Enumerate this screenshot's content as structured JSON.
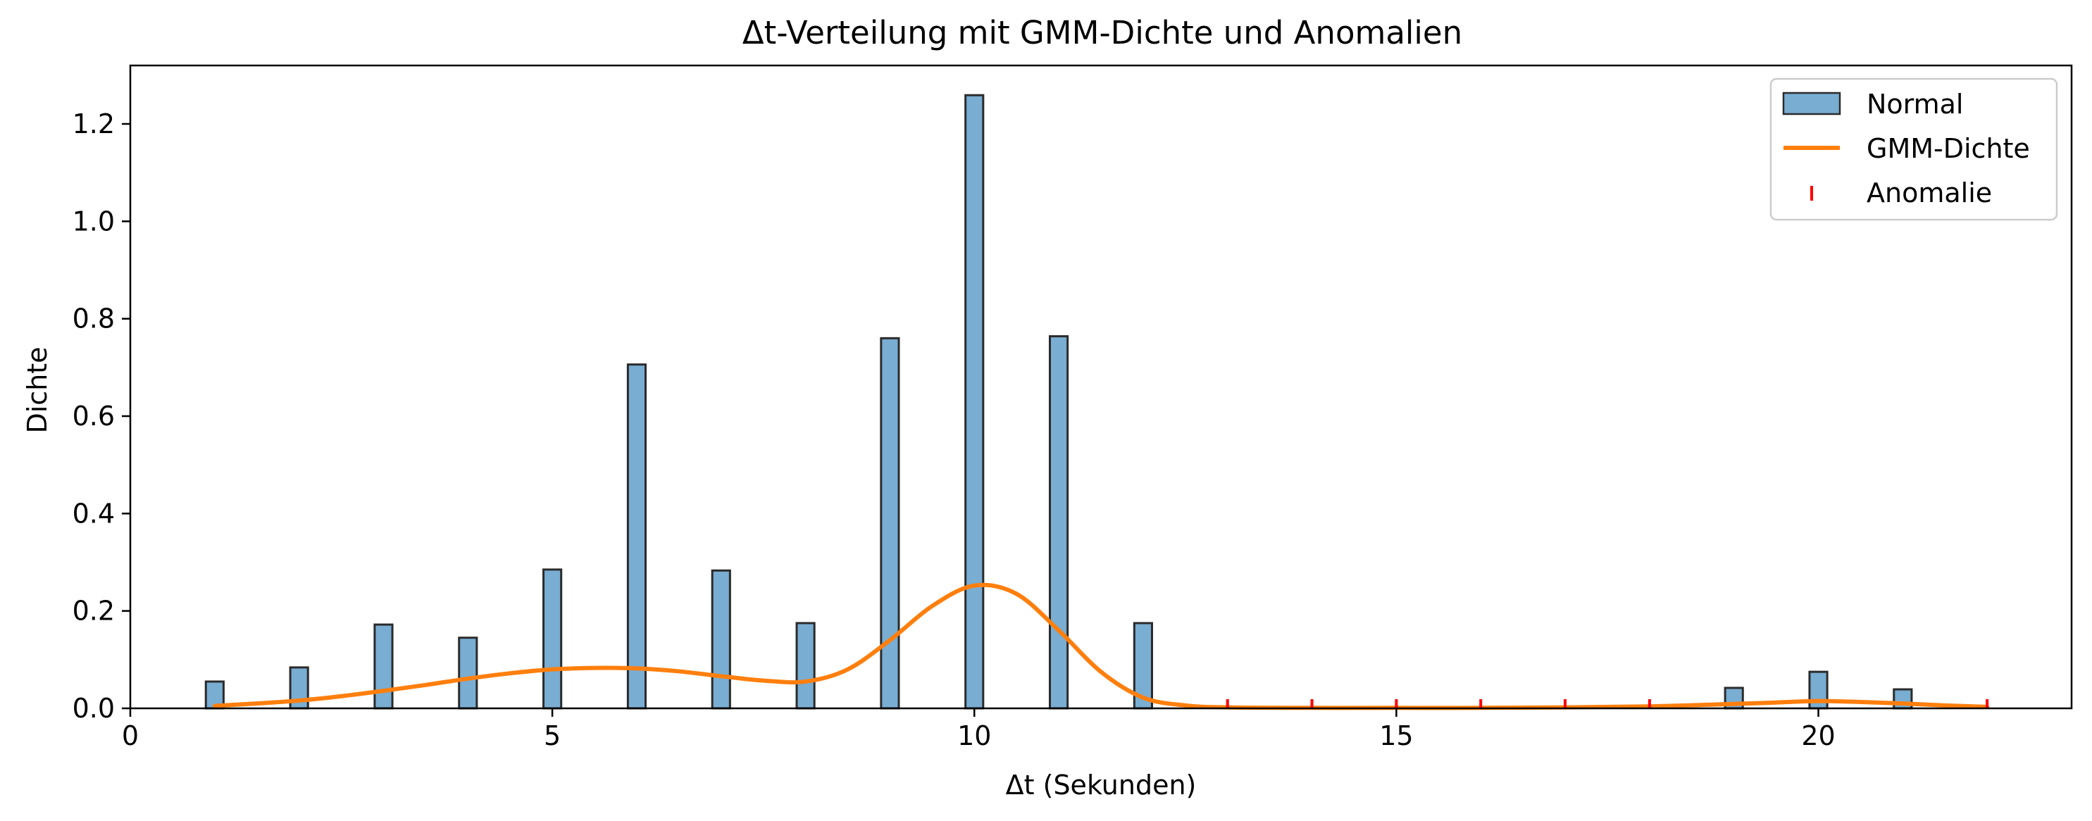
{
  "chart_data": {
    "type": "bar",
    "title": "Δt-Verteilung mit GMM-Dichte und Anomalien",
    "xlabel": "Δt (Sekunden)",
    "ylabel": "Dichte",
    "xlim": [
      0,
      23
    ],
    "ylim": [
      0,
      1.32
    ],
    "xticks": [
      0,
      5,
      10,
      15,
      20
    ],
    "xtick_labels": [
      "0",
      "5",
      "10",
      "15",
      "20"
    ],
    "yticks": [
      0.0,
      0.2,
      0.4,
      0.6,
      0.8,
      1.0,
      1.2
    ],
    "ytick_labels": [
      "0.0",
      "0.2",
      "0.4",
      "0.6",
      "0.8",
      "1.0",
      "1.2"
    ],
    "grid": false,
    "legend_position": "top-right",
    "histogram": {
      "name": "Normal",
      "color": "#1f77b4",
      "bin_width": 0.21,
      "bins": [
        {
          "x": 1,
          "density": 0.055
        },
        {
          "x": 2,
          "density": 0.084
        },
        {
          "x": 3,
          "density": 0.172
        },
        {
          "x": 4,
          "density": 0.145
        },
        {
          "x": 5,
          "density": 0.285
        },
        {
          "x": 6,
          "density": 0.706
        },
        {
          "x": 7,
          "density": 0.283
        },
        {
          "x": 8,
          "density": 0.175
        },
        {
          "x": 9,
          "density": 0.76
        },
        {
          "x": 10,
          "density": 1.259
        },
        {
          "x": 11,
          "density": 0.764
        },
        {
          "x": 12,
          "density": 0.175
        },
        {
          "x": 19,
          "density": 0.042
        },
        {
          "x": 20,
          "density": 0.075
        },
        {
          "x": 21,
          "density": 0.039
        }
      ]
    },
    "density_curve": {
      "name": "GMM-Dichte",
      "color": "#ff7f0e",
      "x": [
        1,
        1.5,
        2,
        2.5,
        3,
        3.5,
        4,
        4.5,
        5,
        5.5,
        6,
        6.5,
        7,
        7.5,
        8,
        8.5,
        9,
        9.5,
        10,
        10.5,
        11,
        11.5,
        12,
        12.5,
        13,
        14,
        15,
        16,
        17,
        18,
        19,
        19.5,
        20,
        20.5,
        21,
        21.5,
        22
      ],
      "y": [
        0.005,
        0.01,
        0.016,
        0.025,
        0.036,
        0.048,
        0.061,
        0.072,
        0.08,
        0.083,
        0.082,
        0.076,
        0.066,
        0.057,
        0.055,
        0.08,
        0.14,
        0.21,
        0.252,
        0.235,
        0.16,
        0.075,
        0.022,
        0.006,
        0.002,
        0.001,
        0.001,
        0.001,
        0.002,
        0.004,
        0.009,
        0.012,
        0.015,
        0.013,
        0.01,
        0.006,
        0.003
      ]
    },
    "anomalies": {
      "name": "Anomalie",
      "color": "#ff0000",
      "x": [
        13,
        14,
        15,
        16,
        17,
        18,
        22
      ]
    }
  }
}
